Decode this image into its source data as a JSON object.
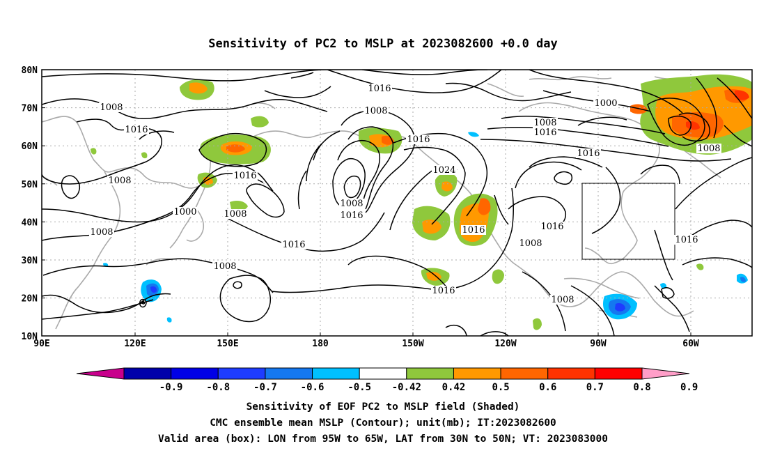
{
  "title": "Sensitivity of PC2 to MSLP at 2023082600 +0.0 day",
  "map": {
    "lon_ticks": [
      "90E",
      "120E",
      "150E",
      "180",
      "150W",
      "120W",
      "90W",
      "60W"
    ],
    "lat_ticks": [
      "80N",
      "70N",
      "60N",
      "50N",
      "40N",
      "30N",
      "20N",
      "10N"
    ],
    "grid": "dotted",
    "coastline_color": "#aaaaaa",
    "contour_color": "#000000",
    "valid_box": {
      "lon_range": [
        "95W",
        "65W"
      ],
      "lat_range": [
        "30N",
        "50N"
      ]
    },
    "contour_labels": [
      "1016",
      "1008",
      "1016",
      "1008",
      "1000",
      "1008",
      "1008",
      "1016",
      "1016",
      "1008",
      "1016",
      "1016",
      "1024",
      "1000",
      "1008",
      "1016",
      "1016",
      "1016",
      "1016",
      "1008",
      "1008",
      "1008",
      "1016",
      "1008",
      "1016",
      "1008"
    ]
  },
  "colorbar": {
    "levels": [
      "-0.9",
      "-0.8",
      "-0.7",
      "-0.6",
      "-0.5",
      "-0.42",
      "0.42",
      "0.5",
      "0.6",
      "0.7",
      "0.8",
      "0.9"
    ],
    "colors": [
      "#c8008c",
      "#0000aa",
      "#0000e6",
      "#1e3cff",
      "#1478f0",
      "#00c0ff",
      "#ffffff",
      "#8fc83c",
      "#ff9900",
      "#ff6600",
      "#ff3300",
      "#ff0000",
      "#ff9ec8"
    ]
  },
  "captions": [
    "Sensitivity of EOF PC2 to MSLP field (Shaded)",
    "CMC ensemble mean MSLP (Contour); unit(mb); IT:2023082600",
    "Valid area (box): LON from 95W to 65W, LAT from 30N to 50N; VT: 2023083000"
  ]
}
